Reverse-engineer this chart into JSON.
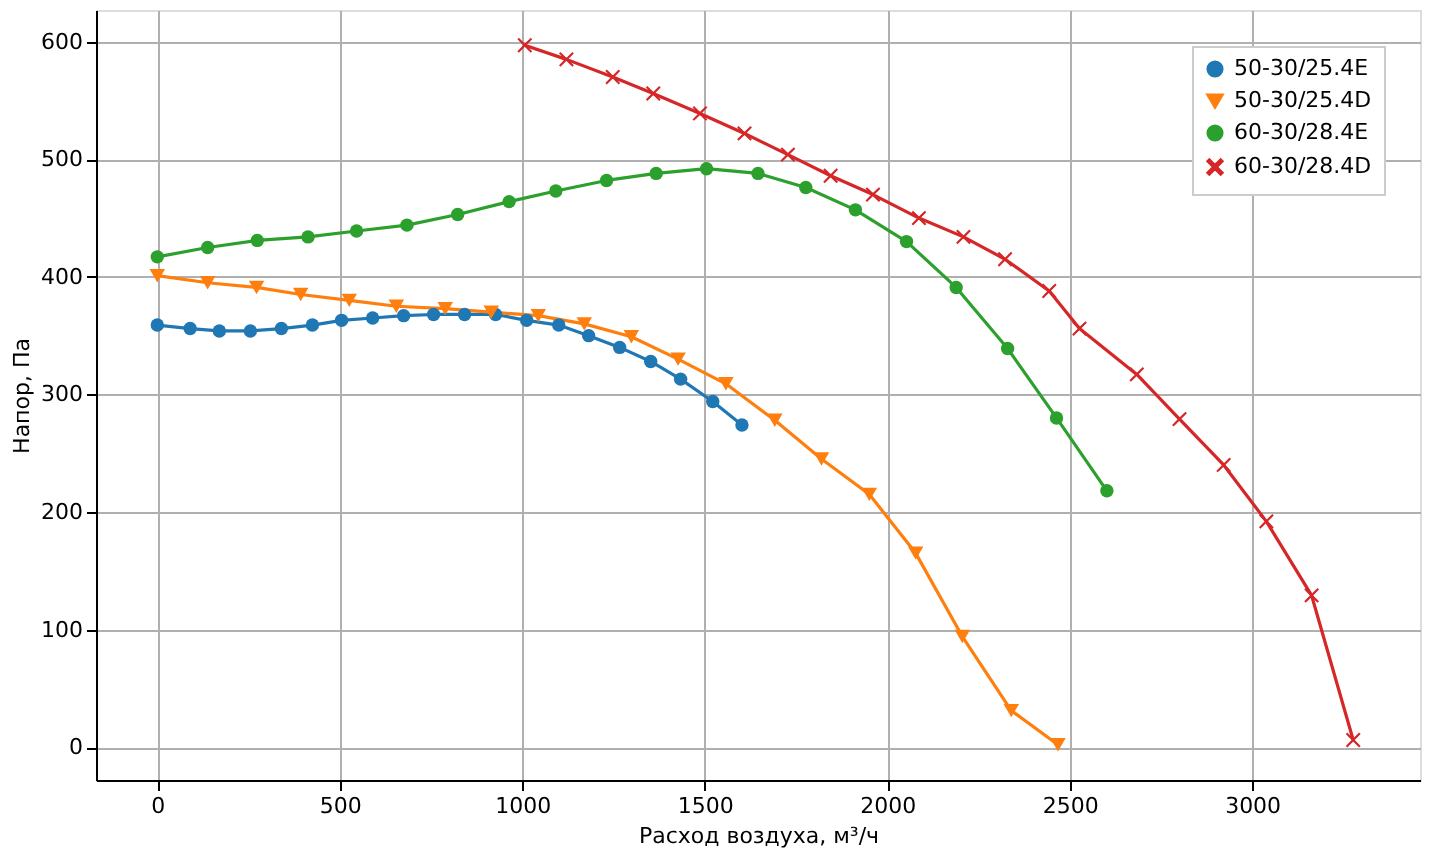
{
  "chart_data": {
    "type": "line",
    "xlabel": "Расход воздуха, м³/ч",
    "ylabel": "Напор, Па",
    "xlim": [
      -168,
      3460
    ],
    "ylim": [
      -28,
      627
    ],
    "xticks": [
      0,
      500,
      1000,
      1500,
      2000,
      2500,
      3000
    ],
    "yticks": [
      0,
      100,
      200,
      300,
      400,
      500,
      600
    ],
    "grid": true,
    "legend": "top right",
    "series": [
      {
        "name": "50-30/25.4E",
        "color": "#1f77b4",
        "marker": "circle",
        "x": [
          0,
          90,
          170,
          255,
          340,
          425,
          505,
          590,
          675,
          757,
          842,
          927,
          1012,
          1100,
          1182,
          1267,
          1352,
          1434,
          1522,
          1602
        ],
        "values": [
          359,
          356,
          354,
          354,
          356,
          359,
          363,
          365,
          367,
          368,
          368,
          368,
          363,
          359,
          350,
          340,
          328,
          313,
          294,
          274
        ]
      },
      {
        "name": "50-30/25.4D",
        "color": "#ff7f0e",
        "marker": "triangle",
        "x": [
          0,
          138,
          272,
          393,
          526,
          655,
          789,
          915,
          1044,
          1170,
          1299,
          1427,
          1558,
          1692,
          1820,
          1951,
          2078,
          2206,
          2340,
          2468
        ],
        "values": [
          401,
          395,
          391,
          385,
          380,
          375,
          373,
          370,
          367,
          360,
          349,
          330,
          309,
          278,
          245,
          215,
          165,
          94,
          31,
          2
        ]
      },
      {
        "name": "60-30/28.4E",
        "color": "#2ca02c",
        "marker": "circle",
        "x": [
          0,
          138,
          274,
          413,
          546,
          684,
          823,
          964,
          1092,
          1231,
          1367,
          1505,
          1646,
          1777,
          1913,
          2053,
          2189,
          2330,
          2464,
          2602
        ],
        "values": [
          417,
          425,
          431,
          434,
          439,
          444,
          453,
          464,
          473,
          482,
          488,
          492,
          488,
          476,
          457,
          430,
          391,
          339,
          280,
          218
        ]
      },
      {
        "name": "60-30/28.4D",
        "color": "#d62728",
        "marker": "cross",
        "x": [
          1007,
          1121,
          1248,
          1359,
          1487,
          1609,
          1728,
          1845,
          1961,
          2087,
          2209,
          2323,
          2444,
          2527,
          2684,
          2801,
          2922,
          3039,
          3163,
          3277
        ],
        "values": [
          597,
          585,
          570,
          556,
          539,
          522,
          504,
          486,
          470,
          450,
          434,
          415,
          388,
          356,
          317,
          279,
          240,
          192,
          129,
          6
        ]
      }
    ]
  }
}
